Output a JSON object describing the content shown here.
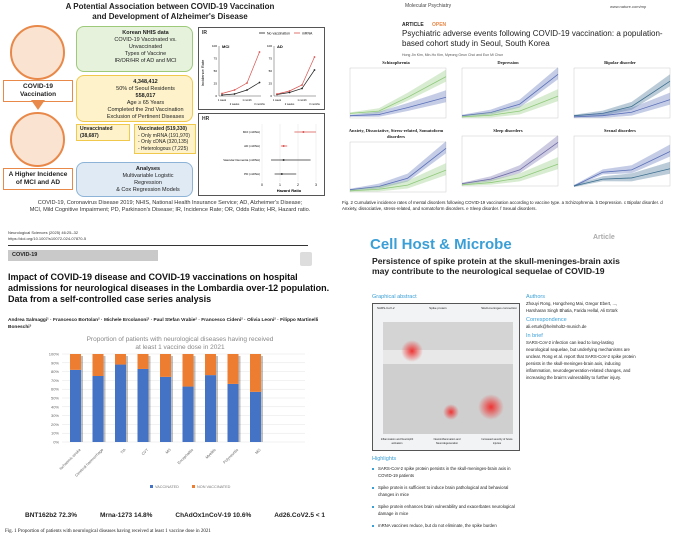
{
  "infographic": {
    "title_line1": "A Potential Association between COVID-19 Vaccination",
    "title_line2": "and Development of Alzheimer's Disease",
    "left_top_label": "COVID-19 Vaccination",
    "left_bottom_label": "A Higher Incidence of MCI and AD",
    "nhis": {
      "heading": "Korean NHIS data",
      "lines": [
        "COVID-19 Vaccinated vs. Unvaccinated",
        "Types of Vaccine",
        "IR/OR/HR of AD and MCI"
      ]
    },
    "population": {
      "n1": "4,348,412",
      "l1": "50% of Seoul Residents",
      "n2": "558,017",
      "l2": "Age ≥ 65 Years",
      "l3": "Completed the 2nd Vaccination",
      "l4": "Exclusion of Pertinent Diseases"
    },
    "unvaccinated": "Unvaccinated (38,687)",
    "vaccinated": {
      "heading": "Vaccinated (519,330)",
      "items": [
        "- Only mRNA (191,970)",
        "- Only cDNA (320,135)",
        "- Heterologous (7,225)"
      ]
    },
    "analyses": {
      "heading": "Analyses",
      "lines": [
        "Multivariable Logistic",
        "Regression",
        "& Cox Regression Models"
      ]
    },
    "ir_label": "IR",
    "hr_label": "HR",
    "abbreviations_line1": "COVID-19, Coronavirus Disease 2019; NHIS, National Health Insurance Service; AD, Alzheimer's Disease;",
    "abbreviations_line2": "MCI, Mild Cognitive Impairment; PD, Parkinson's Disease; IR, Incidence Rate; OR, Odds Ratio; HR, Hazard ratio."
  },
  "neuro_paper": {
    "journal": "Neurological Sciences (2025) 46:25–32",
    "doi": "https://doi.org/10.1007/s10072-024-07870-5",
    "category": "COVID-19",
    "title": "Impact of COVID-19 disease and COVID-19 vaccinations on hospital admissions for neurological diseases in the Lombardia over-12 population. Data from a self-controlled case series analysis",
    "authors": "Andrea Salmaggi¹ · Francesco Bortolan² · Michele Ercolanoni² · Paul Stefan Vrabie² · Francesco Cideni² · Olivia Leoni² · Filippo Martinelli Boneschi³",
    "vaccines": [
      "BNT162b2  72.3%",
      "Mrna-1273 14.8%",
      "ChAdOx1nCoV-19  10.6%",
      "Ad26.CoV2.5  < 1"
    ],
    "caption": "Fig. 1  Proportion of patients with neurological diseases having received at least 1 vaccine dose in 2021"
  },
  "mol_psych": {
    "journal": "Molecular Psychiatry",
    "url": "www.nature.com/mp",
    "article": "ARTICLE",
    "open": "OPEN",
    "title": "Psychiatric adverse events following COVID-19 vaccination: a population-based cohort study in Seoul, South Korea",
    "authors": "Hong Jin Kim, Min-Ho Kim, Myeong Geun Choi and Eun Mi Chun",
    "panels": [
      "Schizophrenia",
      "Depression",
      "Bipolar disorder",
      "Anxiety, Dissociative, Stress-related, Somatoform disorders",
      "Sleep disorders",
      "Sexual disorders"
    ],
    "caption": "Fig. 2  Cumulative incidence rates of mental disorders following COVID-19 vaccination according to vaccine type. a Schizophrenia. b Depression. c Bipolar disorder. d Anxiety, dissociative, stress-related, and somatoform disorders. e Sleep disorder. f Sexual disorders."
  },
  "cell_host": {
    "journal": "Cell Host & Microbe",
    "type": "Article",
    "title": "Persistence of spike protein at the skull-meninges-brain axis may contribute to the neurological sequelae of COVID-19",
    "graphical_abstract": "Graphical abstract",
    "ga_labels": [
      "SARS-CoV-2",
      "Spike protein",
      "Skull-meninges connection"
    ],
    "ga_bottom": [
      "Inflammation and Neutrophil activation",
      "Neuroinflammation and Neurodegeneration",
      "Increased severity of future injuries"
    ],
    "authors_heading": "Authors",
    "authors": "Zhouyi Rong, Hongcheng Mai, Gregor Ebert, ..., Harsharan Singh Bhatia, Farida Hellal, Ali Ertürk",
    "correspondence_heading": "Correspondence",
    "correspondence": "ali.erturk@helmholtz-munich.de",
    "inbrief_heading": "In brief",
    "inbrief": "SARS-CoV-2 infection can lead to long-lasting neurological sequelae, but underlying mechanisms are unclear. Rong et al. report that SARS-CoV-2 spike protein persists in the skull-meninges-brain axis, inducing inflammation, neurodegeneration-related changes, and increasing the brain's vulnerability to further injury.",
    "highlights_heading": "Highlights",
    "highlights": [
      "SARS-CoV-2 spike protein persists in the skull-meninges-brain axis in COVID-19 patients",
      "Spike protein is sufficient to induce brain pathological and behavioral changes in mice",
      "Spike protein enhances brain vulnerability and exacerbates neurological damage in mice",
      "mRNA vaccines reduce, but do not eliminate, the spike burden"
    ]
  },
  "chart_data": [
    {
      "type": "bar",
      "stacked": true,
      "title": "Proportion of patients with neurological diseases having received at least 1 vaccine dose in 2021",
      "categories": [
        "Ischaemic stroke",
        "Cerebral haemorrhage",
        "TIA",
        "CVT",
        "MS",
        "Encephalitis",
        "Myelitis",
        "Polyneuritis",
        "MG"
      ],
      "series": [
        {
          "name": "VACCINATED",
          "color": "#4472c4",
          "values": [
            82,
            75,
            88,
            83,
            74,
            63,
            76,
            66,
            57
          ]
        },
        {
          "name": "NON VACCINATED",
          "color": "#ed7d31",
          "values": [
            18,
            25,
            12,
            17,
            26,
            37,
            24,
            34,
            43
          ]
        }
      ],
      "yticks": [
        "0%",
        "10%",
        "20%",
        "30%",
        "40%",
        "50%",
        "60%",
        "70%",
        "80%",
        "90%",
        "100%"
      ],
      "ylim": [
        0,
        100
      ],
      "legend": "bottom",
      "grid": true
    },
    {
      "type": "line",
      "title": "IR",
      "ylabel": "Incidence Rate",
      "ylim": [
        0,
        100
      ],
      "categories": [
        "1 week",
        "2 weeks",
        "1 month",
        "3 months"
      ],
      "panels": [
        {
          "name": "MCI",
          "series": [
            {
              "name": "No vaccination",
              "color": "#222222",
              "values": [
                2,
                4,
                12,
                27
              ]
            },
            {
              "name": "mRNA",
              "color": "#d9534f",
              "values": [
                5,
                12,
                26,
                88
              ]
            }
          ]
        },
        {
          "name": "AD",
          "series": [
            {
              "name": "No vaccination",
              "color": "#222222",
              "values": [
                3,
                7,
                15,
                52
              ]
            },
            {
              "name": "mRNA",
              "color": "#d9534f",
              "values": [
                4,
                10,
                22,
                78
              ]
            }
          ]
        }
      ],
      "yticks": [
        "0",
        "25",
        "50",
        "75",
        "100"
      ]
    },
    {
      "type": "forest",
      "title": "HR",
      "xlabel": "Hazard Ratio",
      "xlim": [
        0,
        3
      ],
      "xticks": [
        "0",
        "1",
        "2",
        "3"
      ],
      "rows": [
        {
          "label": "MCI (mRNA)",
          "hr": 2.3,
          "lo": 1.8,
          "hi": 3.0,
          "color": "#d9534f"
        },
        {
          "label": "AD (mRNA)",
          "hr": 1.2,
          "lo": 1.05,
          "hi": 1.4,
          "color": "#d9534f"
        },
        {
          "label": "Vascular Dementia (mRNA)",
          "hr": 1.2,
          "lo": 0.5,
          "hi": 2.7,
          "color": "#333333"
        },
        {
          "label": "PD (mRNA)",
          "hr": 1.1,
          "lo": 0.7,
          "hi": 1.9,
          "color": "#333333"
        }
      ]
    }
  ]
}
